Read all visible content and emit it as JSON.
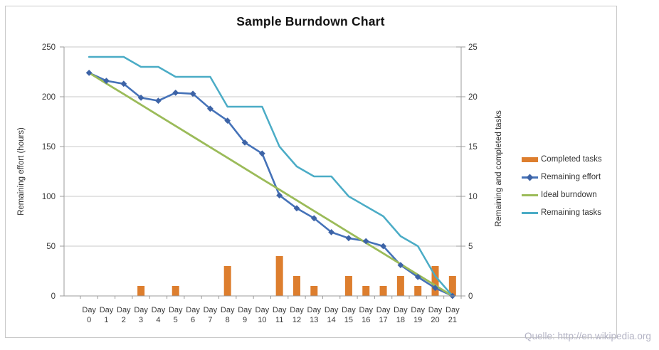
{
  "chart_data": {
    "type": "line",
    "title": "Sample Burndown Chart",
    "categories": [
      "Day 0",
      "Day 1",
      "Day 2",
      "Day 3",
      "Day 4",
      "Day 5",
      "Day 6",
      "Day 7",
      "Day 8",
      "Day 9",
      "Day 10",
      "Day 11",
      "Day 12",
      "Day 13",
      "Day 14",
      "Day 15",
      "Day 16",
      "Day 17",
      "Day 18",
      "Day 19",
      "Day 20",
      "Day 21"
    ],
    "series": [
      {
        "name": "Completed tasks",
        "kind": "bar",
        "axis": "right",
        "color": "#dd7e2e",
        "values": [
          0,
          0,
          0,
          1,
          0,
          1,
          0,
          0,
          3,
          0,
          0,
          4,
          2,
          1,
          0,
          2,
          1,
          1,
          2,
          1,
          3,
          2
        ]
      },
      {
        "name": "Remaining effort",
        "kind": "line",
        "axis": "left",
        "color": "#4572b8",
        "marker": "diamond",
        "marker_color": "#3d63a6",
        "values": [
          224,
          216,
          213,
          199,
          196,
          204,
          203,
          188,
          176,
          154,
          143,
          101,
          88,
          78,
          64,
          58,
          55,
          50,
          31,
          19,
          8,
          0
        ]
      },
      {
        "name": "Ideal burndown",
        "kind": "line",
        "axis": "left",
        "color": "#9bbb59",
        "values": [
          224,
          213.3,
          202.7,
          192,
          181.3,
          170.7,
          160,
          149.3,
          138.7,
          128,
          117.3,
          106.7,
          96,
          85.3,
          74.7,
          64,
          53.3,
          42.7,
          32,
          21.3,
          10.7,
          0
        ]
      },
      {
        "name": "Remaining tasks",
        "kind": "line",
        "axis": "right",
        "color": "#4bacc6",
        "values": [
          24,
          24,
          24,
          23,
          23,
          22,
          22,
          22,
          19,
          19,
          19,
          15,
          13,
          12,
          12,
          10,
          9,
          8,
          6,
          5,
          2,
          0
        ]
      }
    ],
    "left_axis": {
      "label": "Remaining effort (hours)",
      "ticks": [
        0,
        50,
        100,
        150,
        200,
        250
      ],
      "range": [
        0,
        250
      ]
    },
    "right_axis": {
      "label": "Remaining and completed tasks",
      "ticks": [
        0,
        5,
        10,
        15,
        20,
        25
      ],
      "range": [
        0,
        25
      ]
    },
    "legend_position": "right",
    "grid": true
  },
  "watermark": "Quelle: http://en.wikipedia.org"
}
